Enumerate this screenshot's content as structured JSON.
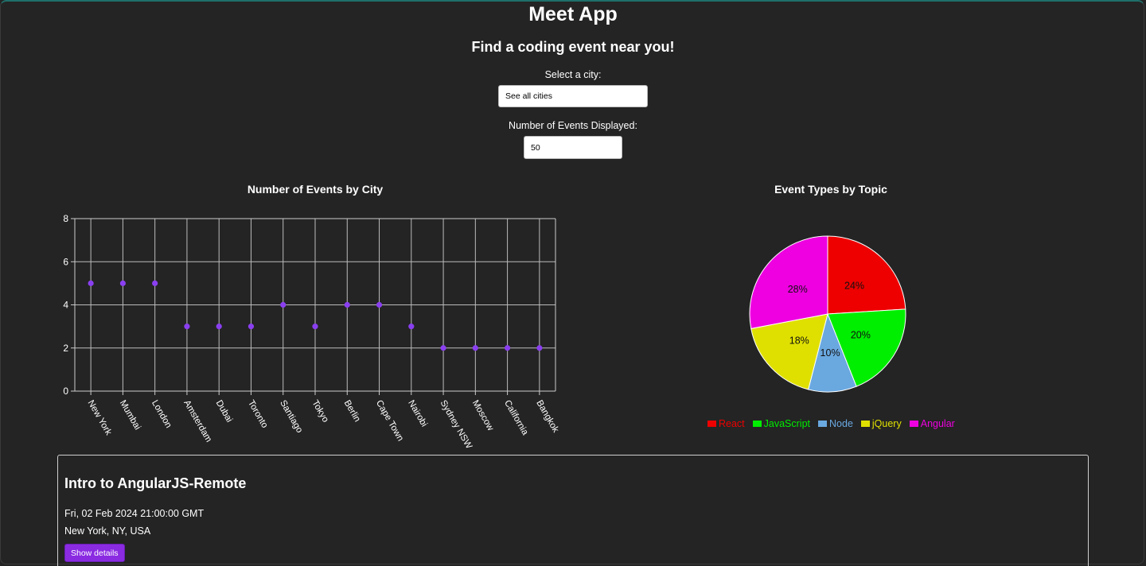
{
  "header": {
    "title": "Meet App",
    "subtitle": "Find a coding event near you!"
  },
  "city_search": {
    "label": "Select a city:",
    "value": "See all cities"
  },
  "event_count": {
    "label": "Number of Events Displayed:",
    "value": "50"
  },
  "scatter_title": "Number of Events by City",
  "pie_title": "Event Types by Topic",
  "colors": {
    "background": "#242424",
    "scatter_point": "#8a3ff0",
    "button": "#8a2be2"
  },
  "chart_data": [
    {
      "type": "scatter",
      "title": "Number of Events by City",
      "categories": [
        "New York",
        "Mumbai",
        "London",
        "Amsterdam",
        "Dubai",
        "Toronto",
        "Santiago",
        "Tokyo",
        "Berlin",
        "Cape Town",
        "Nairobi",
        "Sydney NSW",
        "Moscow",
        "California",
        "Bangkok"
      ],
      "values": [
        5,
        5,
        5,
        3,
        3,
        3,
        4,
        3,
        4,
        4,
        3,
        2,
        2,
        2,
        2
      ],
      "ylim": [
        0,
        8
      ],
      "yticks": [
        0,
        2,
        4,
        6,
        8
      ],
      "grid": true
    },
    {
      "type": "pie",
      "title": "Event Types by Topic",
      "slices": [
        {
          "label": "React",
          "percent": 24,
          "color": "#ee0000"
        },
        {
          "label": "JavaScript",
          "percent": 20,
          "color": "#00ee00"
        },
        {
          "label": "Node",
          "percent": 10,
          "color": "#6aa8e0"
        },
        {
          "label": "jQuery",
          "percent": 18,
          "color": "#dfe000"
        },
        {
          "label": "Angular",
          "percent": 28,
          "color": "#ee00e0"
        }
      ],
      "legend_position": "bottom"
    }
  ],
  "events": [
    {
      "title": "Intro to AngularJS-Remote",
      "date": "Fri, 02 Feb 2024 21:00:00 GMT",
      "location": "New York, NY, USA",
      "button_label": "Show details"
    }
  ]
}
